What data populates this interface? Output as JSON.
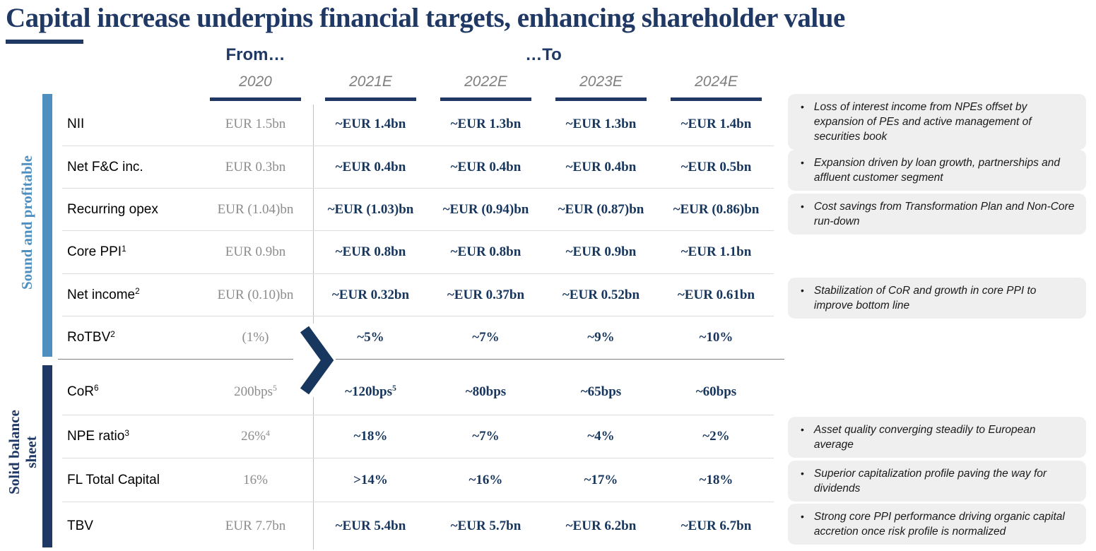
{
  "title": "Capital increase underpins financial targets, enhancing shareholder value",
  "header": {
    "from": "From…",
    "to": "…To"
  },
  "columns": [
    "2020",
    "2021E",
    "2022E",
    "2023E",
    "2024E"
  ],
  "sections": [
    {
      "label": "Sound and profitable",
      "rows": [
        {
          "label": "NII",
          "values": [
            "EUR 1.5bn",
            "~EUR 1.4bn",
            "~EUR 1.3bn",
            "~EUR 1.3bn",
            "~EUR 1.4bn"
          ]
        },
        {
          "label": "Net F&C inc.",
          "values": [
            "EUR 0.3bn",
            "~EUR 0.4bn",
            "~EUR 0.4bn",
            "~EUR 0.4bn",
            "~EUR 0.5bn"
          ]
        },
        {
          "label": "Recurring opex",
          "values": [
            "EUR (1.04)bn",
            "~EUR (1.03)bn",
            "~EUR (0.94)bn",
            "~EUR (0.87)bn",
            "~EUR (0.86)bn"
          ]
        },
        {
          "label": "Core PPI¹",
          "values": [
            "EUR 0.9bn",
            "~EUR 0.8bn",
            "~EUR 0.8bn",
            "~EUR 0.9bn",
            "~EUR 1.1bn"
          ]
        },
        {
          "label": "Net income²",
          "values": [
            "EUR (0.10)bn",
            "~EUR 0.32bn",
            "~EUR 0.37bn",
            "~EUR 0.52bn",
            "~EUR 0.61bn"
          ]
        },
        {
          "label": "RoTBV²",
          "values": [
            "(1%)",
            "~5%",
            "~7%",
            "~9%",
            "~10%"
          ]
        }
      ]
    },
    {
      "label": "Solid balance\nsheet",
      "rows": [
        {
          "label": "CoR⁶",
          "values": [
            "200bps⁵",
            "~120bps⁵",
            "~80bps",
            "~65bps",
            "~60bps"
          ]
        },
        {
          "label": "NPE ratio³",
          "values": [
            "26%⁴",
            "~18%",
            "~7%",
            "~4%",
            "~2%"
          ]
        },
        {
          "label": "FL Total Capital",
          "values": [
            "16%",
            ">14%",
            "~16%",
            "~17%",
            "~18%"
          ]
        },
        {
          "label": "TBV",
          "values": [
            "EUR 7.7bn",
            "~EUR 5.4bn",
            "~EUR 5.7bn",
            "~EUR 6.2bn",
            "~EUR 6.7bn"
          ]
        }
      ]
    }
  ],
  "callouts": [
    "Loss of interest income from NPEs offset by expansion of PEs and active management of securities book",
    "Expansion driven by loan growth, partnerships and affluent customer segment",
    "Cost savings from Transformation Plan and Non-Core run-down",
    "Stabilization of CoR and growth in core PPI to improve bottom line",
    "Asset quality converging steadily to European average",
    "Superior capitalization profile paving the way for dividends",
    "Strong core PPI performance driving organic capital accretion once risk profile is normalized"
  ],
  "bullet_glyph": "•",
  "colors": {
    "navy": "#1F3864",
    "value_navy": "#17365D",
    "light_blue": "#4E8FC0",
    "muted_gray": "#8C8C8C",
    "callout_bg": "#EFEFEF"
  }
}
